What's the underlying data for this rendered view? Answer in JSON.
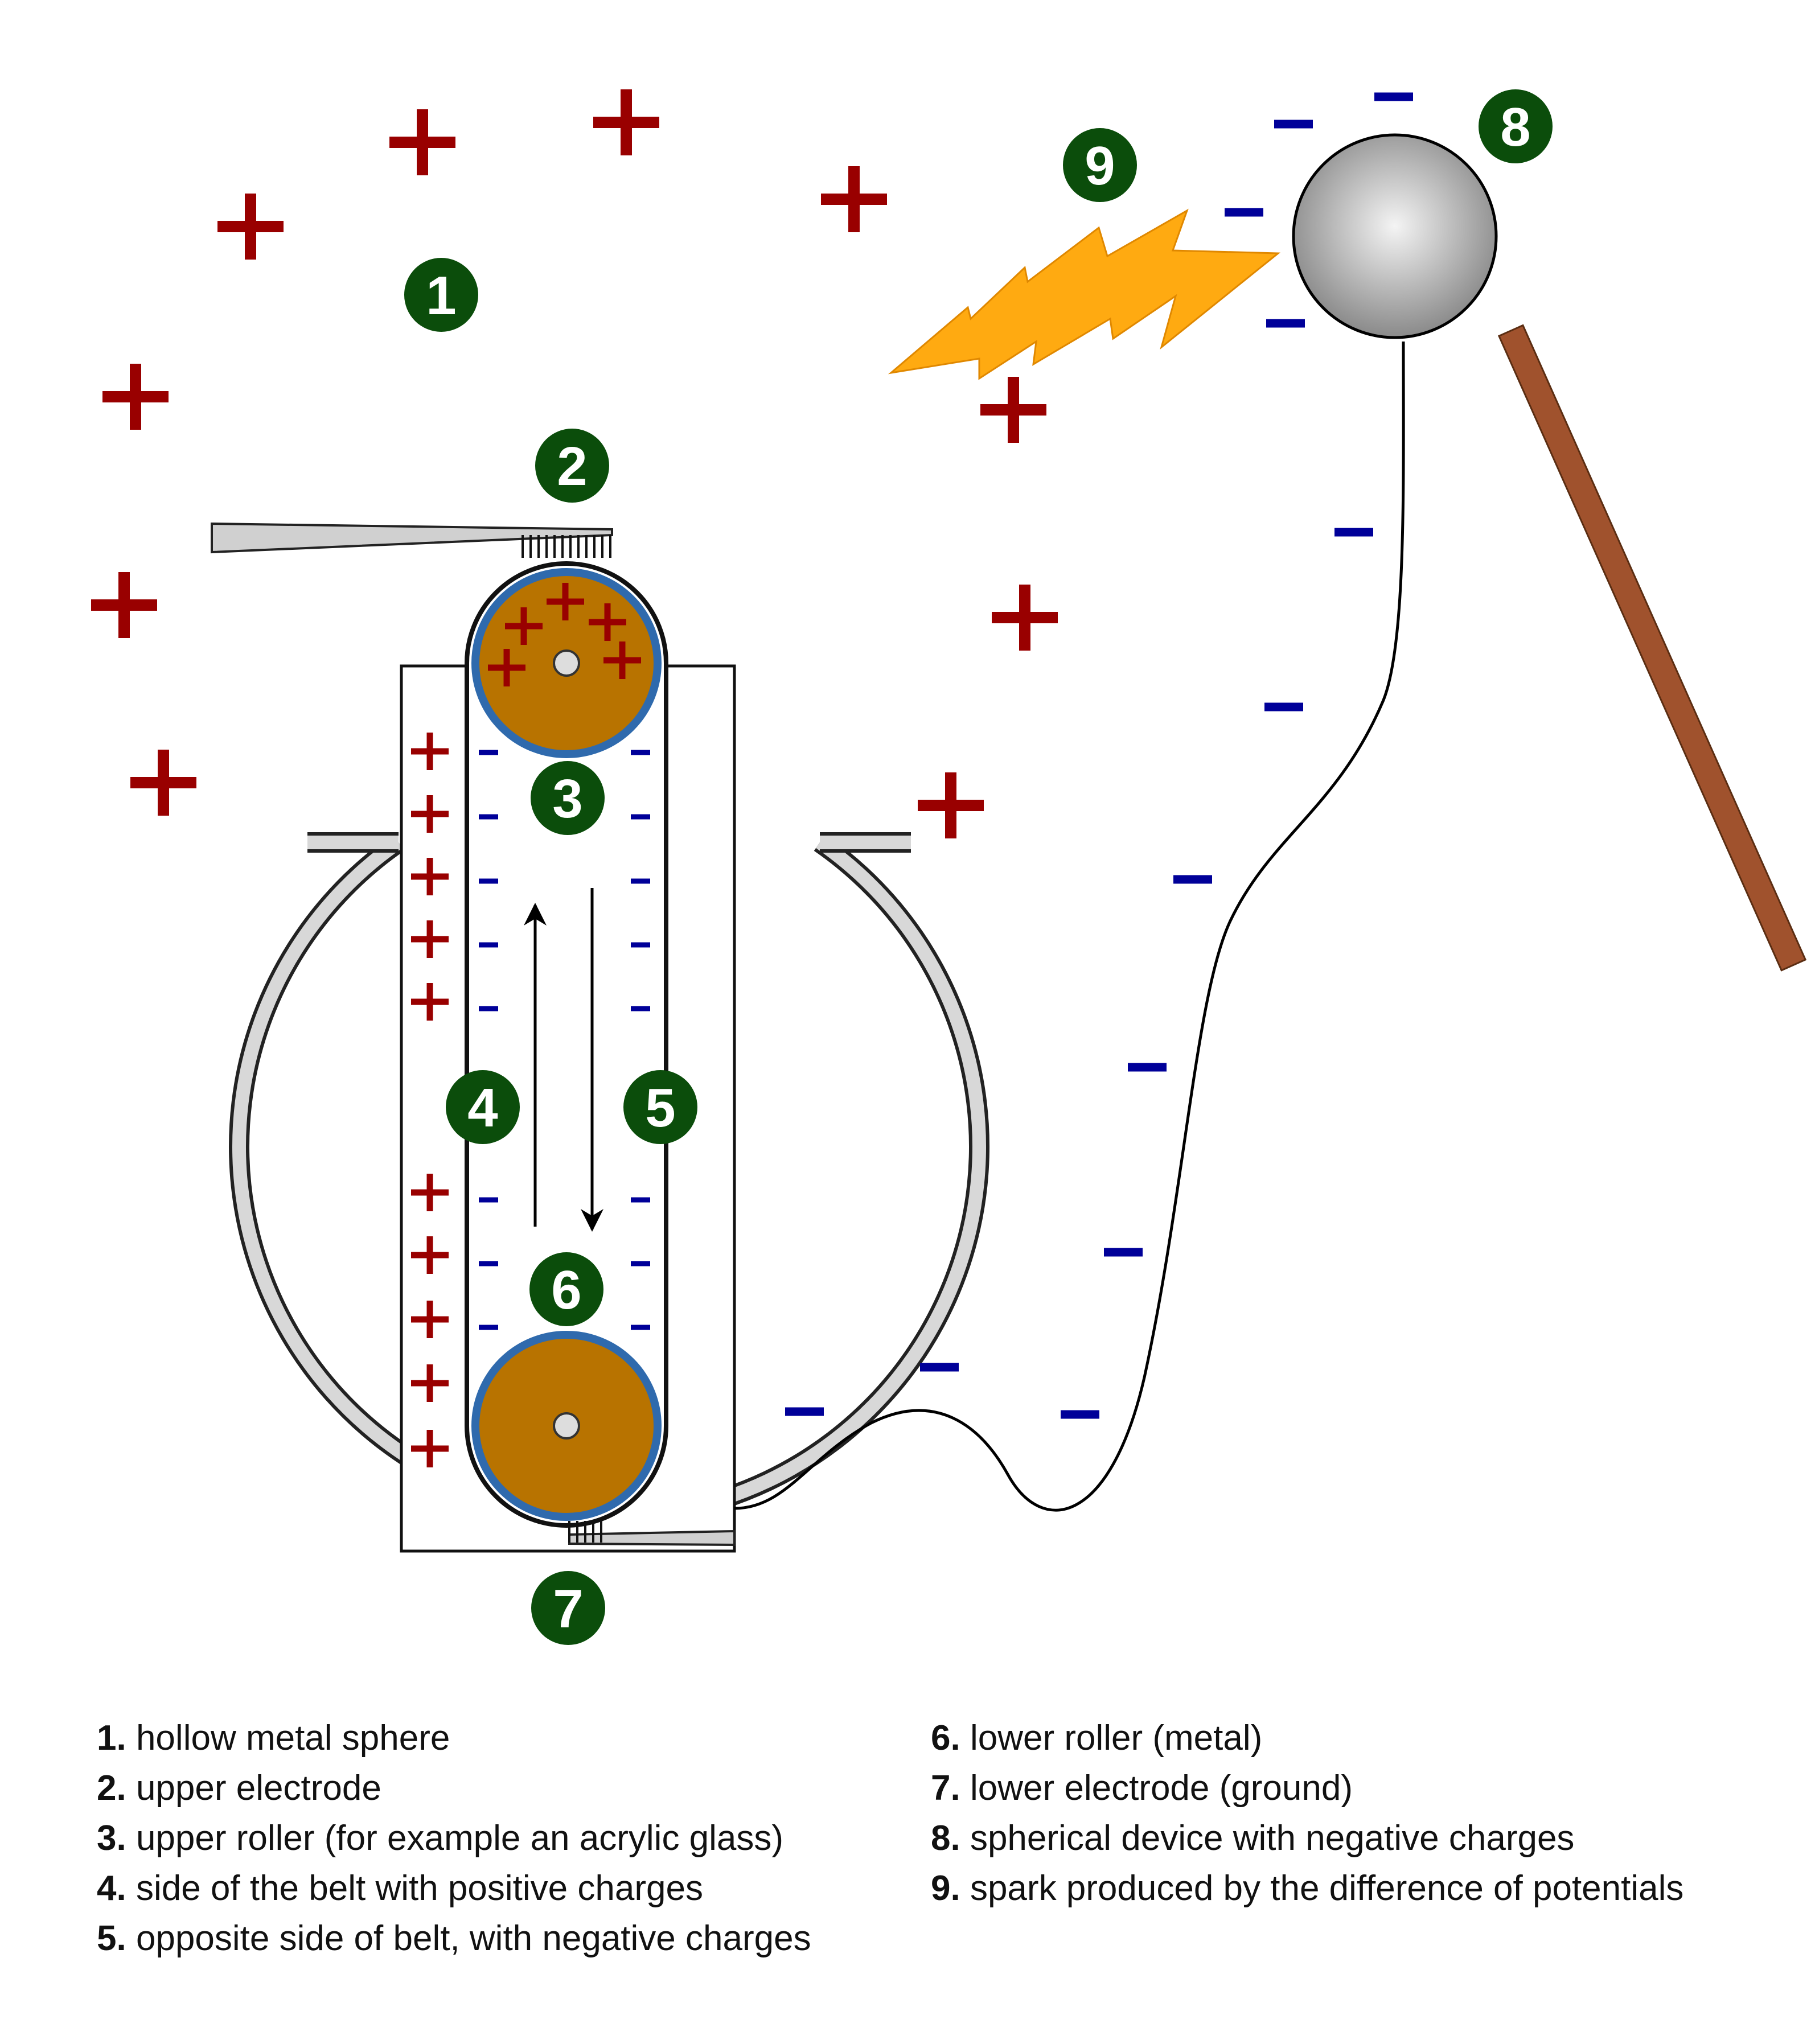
{
  "diagram": {
    "markers": [
      "1",
      "2",
      "3",
      "4",
      "5",
      "6",
      "7",
      "8",
      "9"
    ],
    "positive_symbol": "+",
    "negative_symbol": "−"
  },
  "legend": {
    "left": [
      {
        "num": "1.",
        "text": "hollow metal sphere"
      },
      {
        "num": "2.",
        "text": "upper electrode"
      },
      {
        "num": "3.",
        "text": "upper roller (for example an acrylic glass)"
      },
      {
        "num": "4.",
        "text": "side of the belt with positive charges"
      },
      {
        "num": "5.",
        "text": "opposite side of belt, with negative charges"
      }
    ],
    "right": [
      {
        "num": "6.",
        "text": "lower roller (metal)"
      },
      {
        "num": "7.",
        "text": "lower electrode (ground)"
      },
      {
        "num": "8.",
        "text": "spherical device with negative charges"
      },
      {
        "num": "9.",
        "text": "spark produced by the difference of potentials"
      }
    ]
  },
  "colors": {
    "positive": "#990000",
    "negative": "#000099",
    "marker": "#0b4d0b",
    "roller": "#b87300",
    "roller_rim": "#2f6aad",
    "spark": "#ffaa11",
    "rod": "#a0522d"
  }
}
